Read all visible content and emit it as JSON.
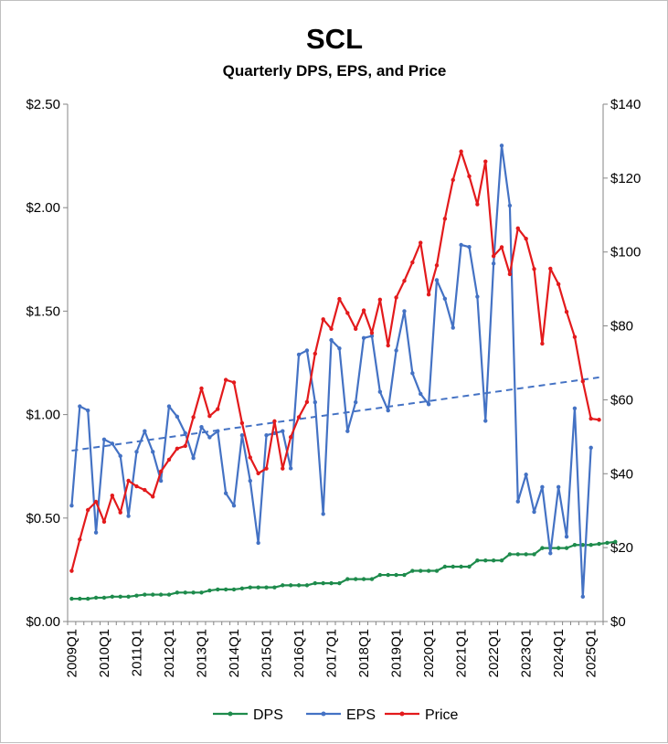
{
  "chart_data": {
    "type": "line",
    "title": "SCL",
    "subtitle": "Quarterly DPS, EPS, and Price",
    "xlabel": "",
    "ylabel": "",
    "ylim": [
      0,
      2.5
    ],
    "y2lim": [
      0,
      140
    ],
    "y_ticks": [
      "$0.00",
      "$0.50",
      "$1.00",
      "$1.50",
      "$2.00",
      "$2.50"
    ],
    "y2_ticks": [
      "$0",
      "$20",
      "$40",
      "$60",
      "$80",
      "$100",
      "$120",
      "$140"
    ],
    "x_tick_labels": [
      "2009Q1",
      "2010Q1",
      "2011Q1",
      "2012Q1",
      "2013Q1",
      "2014Q1",
      "2015Q1",
      "2016Q1",
      "2017Q1",
      "2018Q1",
      "2019Q1",
      "2020Q1",
      "2021Q1",
      "2022Q1",
      "2023Q1",
      "2024Q1",
      "2025Q1"
    ],
    "x_start": "2009Q1",
    "legend_position": "bottom",
    "series": [
      {
        "name": "DPS",
        "axis": "left",
        "color": "#1e8b4c",
        "values": [
          0.11,
          0.11,
          0.11,
          0.115,
          0.115,
          0.12,
          0.12,
          0.12,
          0.125,
          0.13,
          0.13,
          0.13,
          0.13,
          0.14,
          0.14,
          0.14,
          0.14,
          0.15,
          0.155,
          0.155,
          0.155,
          0.16,
          0.165,
          0.165,
          0.165,
          0.165,
          0.175,
          0.175,
          0.175,
          0.175,
          0.185,
          0.185,
          0.185,
          0.185,
          0.205,
          0.205,
          0.205,
          0.205,
          0.225,
          0.225,
          0.225,
          0.225,
          0.245,
          0.245,
          0.245,
          0.245,
          0.265,
          0.265,
          0.265,
          0.265,
          0.295,
          0.295,
          0.295,
          0.295,
          0.325,
          0.325,
          0.325,
          0.325,
          0.355,
          0.355,
          0.355,
          0.355,
          0.37,
          0.37,
          0.37,
          0.375,
          0.38,
          0.385
        ]
      },
      {
        "name": "EPS",
        "axis": "left",
        "color": "#4472c4",
        "values": [
          0.56,
          1.04,
          1.02,
          0.43,
          0.88,
          0.86,
          0.8,
          0.51,
          0.82,
          0.92,
          0.82,
          0.68,
          1.04,
          0.99,
          0.91,
          0.79,
          0.94,
          0.89,
          0.92,
          0.62,
          0.56,
          0.9,
          0.68,
          0.38,
          0.9,
          0.91,
          0.92,
          0.74,
          1.29,
          1.31,
          1.06,
          0.52,
          1.36,
          1.32,
          0.92,
          1.06,
          1.37,
          1.38,
          1.11,
          1.02,
          1.31,
          1.5,
          1.2,
          1.1,
          1.05,
          1.65,
          1.56,
          1.42,
          1.82,
          1.81,
          1.57,
          0.97,
          1.73,
          2.3,
          2.01,
          0.58,
          0.71,
          0.53,
          0.65,
          0.33,
          0.65,
          0.41,
          1.03,
          0.12,
          0.84
        ]
      },
      {
        "name": "Price",
        "axis": "right",
        "color": "#e31a1c",
        "values": [
          13.7,
          22.2,
          30.2,
          32.4,
          27.0,
          34.1,
          29.5,
          38.1,
          36.6,
          35.6,
          33.8,
          40.6,
          43.8,
          46.8,
          47.5,
          55.3,
          63.1,
          55.6,
          57.5,
          65.4,
          64.7,
          53.7,
          44.4,
          40.1,
          41.4,
          54.2,
          41.4,
          49.9,
          55.3,
          59.4,
          72.5,
          81.8,
          79.2,
          87.3,
          83.5,
          79.2,
          84.2,
          78.1,
          87.1,
          74.7,
          87.7,
          92.2,
          97.2,
          102.5,
          88.5,
          96.4,
          109.0,
          119.5,
          127.2,
          120.5,
          112.9,
          124.5,
          98.9,
          101.3,
          94.0,
          106.4,
          103.6,
          95.4,
          75.2,
          95.5,
          91.3,
          83.8,
          77.0,
          65.0,
          54.9,
          54.6
        ]
      }
    ],
    "trendline": {
      "of": "EPS",
      "color": "#4472c4",
      "style": "dashed",
      "type": "linear"
    }
  }
}
